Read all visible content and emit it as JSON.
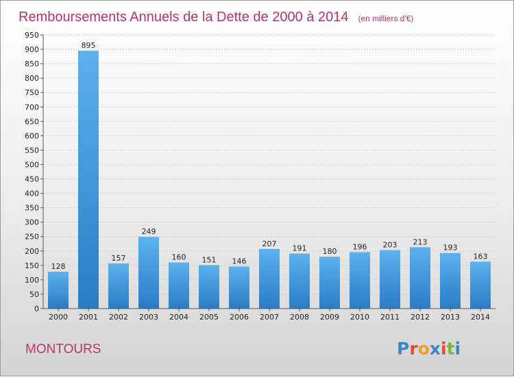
{
  "header": {
    "title": "Remboursements Annuels de la Dette de 2000 à 2014",
    "unit": "(en milliers d'€)"
  },
  "footer": {
    "commune": "MONTOURS",
    "logo_letters": [
      "P",
      "r",
      "o",
      "x",
      "i",
      "t",
      "i"
    ],
    "logo_colors": [
      "#3a86c8",
      "#e8482c",
      "#f0a020",
      "#3a86c8",
      "#e8482c",
      "#7cb342",
      "#3a86c8"
    ]
  },
  "chart_data": {
    "type": "bar",
    "title": "Remboursements Annuels de la Dette de 2000 à 2014",
    "subtitle": "(en milliers d'€)",
    "categories": [
      "2000",
      "2001",
      "2002",
      "2003",
      "2004",
      "2005",
      "2006",
      "2007",
      "2008",
      "2009",
      "2010",
      "2011",
      "2012",
      "2013",
      "2014"
    ],
    "values": [
      128,
      895,
      157,
      249,
      160,
      151,
      146,
      207,
      191,
      180,
      196,
      203,
      213,
      193,
      163
    ],
    "yticks": [
      "0",
      "50",
      "100",
      "150",
      "200",
      "250",
      "300",
      "350",
      "400",
      "450",
      "500",
      "550",
      "600",
      "650",
      "700",
      "750",
      "800",
      "850",
      "900",
      "950"
    ],
    "ylim": [
      0,
      950
    ],
    "grid": true,
    "bar_color": "#3d94dc"
  }
}
